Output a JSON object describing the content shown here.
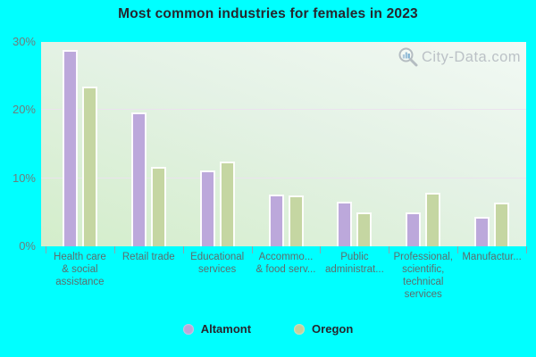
{
  "title": "Most common industries for females in 2023",
  "watermark_text": "City-Data.com",
  "colors": {
    "page_background": "#00ffff",
    "altamont_bar": "#bca8db",
    "oregon_bar": "#c5d6a2",
    "watermark_text": "#b6bcc2",
    "axis_label": "#5d6d6d",
    "ytick_label": "#6e7d7d"
  },
  "legend": {
    "items": [
      {
        "label": "Altamont",
        "color": "#b9a8d8"
      },
      {
        "label": "Oregon",
        "color": "#c3d09e"
      }
    ]
  },
  "chart_data": {
    "type": "bar",
    "title": "Most common industries for females in 2023",
    "categories": [
      "Health care & social assistance",
      "Retail trade",
      "Educational services",
      "Accommo... & food serv...",
      "Public administrat...",
      "Professional, scientific, technical services",
      "Manufactur..."
    ],
    "category_label_lines": [
      [
        "Health care",
        "& social",
        "assistance"
      ],
      [
        "Retail trade"
      ],
      [
        "Educational",
        "services"
      ],
      [
        "Accommo...",
        "& food serv..."
      ],
      [
        "Public",
        "administrat..."
      ],
      [
        "Professional,",
        "scientific,",
        "technical",
        "services"
      ],
      [
        "Manufactur..."
      ]
    ],
    "series": [
      {
        "name": "Altamont",
        "color": "#bca8db",
        "values": [
          28.8,
          19.6,
          11.2,
          7.6,
          6.5,
          5.0,
          4.3
        ]
      },
      {
        "name": "Oregon",
        "color": "#c5d6a2",
        "values": [
          23.5,
          11.6,
          12.5,
          7.5,
          5.0,
          7.9,
          6.4
        ]
      }
    ],
    "xlabel": "",
    "ylabel": "",
    "ylim": [
      0,
      30
    ],
    "yticks": [
      {
        "label": "0%",
        "value": 0
      },
      {
        "label": "10%",
        "value": 10
      },
      {
        "label": "20%",
        "value": 20
      },
      {
        "label": "30%",
        "value": 30
      }
    ],
    "gridlines_at": [
      10,
      20
    ],
    "grid": true,
    "legend_position": "bottom"
  }
}
